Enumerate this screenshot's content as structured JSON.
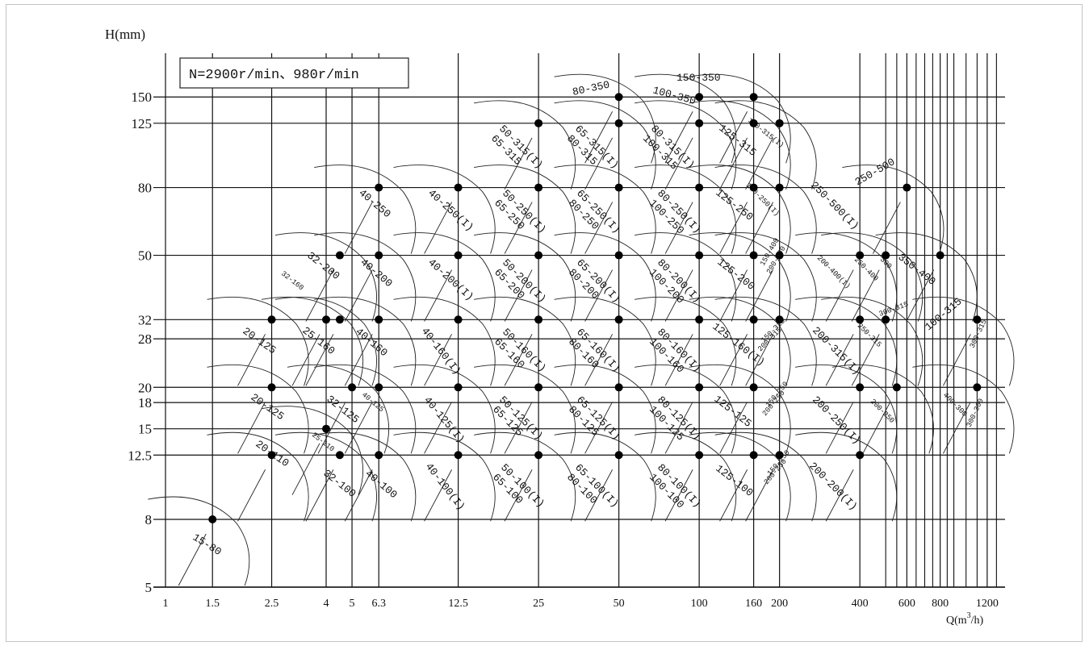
{
  "chart_data": {
    "type": "scatter",
    "title": "N=2900r/min、980r/min",
    "ylabel": "H(mm)",
    "xlabel": "Q(m3/h)",
    "xlabel_main": "Q(m",
    "xlabel_sup": "3",
    "xlabel_end": "/h)",
    "x_scale": "log",
    "y_scale": "log",
    "xlim": [
      1,
      1400
    ],
    "ylim": [
      5,
      190
    ],
    "x_ticks": [
      "1",
      "1.5",
      "2.5",
      "4",
      "5",
      "6.3",
      "12.5",
      "25",
      "50",
      "100",
      "160",
      "200",
      "400",
      "600",
      "800",
      "1200"
    ],
    "y_ticks": [
      "5",
      "8",
      "12.5",
      "15",
      "18",
      "20",
      "28",
      "32",
      "50",
      "80",
      "125",
      "150"
    ],
    "points": [
      {
        "q": 1.5,
        "h": 8,
        "label": "15-80"
      },
      {
        "q": 2.5,
        "h": 12.5,
        "label": "20-110"
      },
      {
        "q": 2.5,
        "h": 20,
        "label": "20-125"
      },
      {
        "q": 2.5,
        "h": 32,
        "label": "20-125"
      },
      {
        "q": 4,
        "h": 32,
        "label": "25-160"
      },
      {
        "q": 4,
        "h": 15,
        "label": "25-110"
      },
      {
        "q": 4.5,
        "h": 12.5,
        "label": "32-100"
      },
      {
        "q": 5,
        "h": 20,
        "label": "32-125"
      },
      {
        "q": 4.5,
        "h": 32,
        "label": "32-160"
      },
      {
        "q": 4.5,
        "h": 50,
        "label": "32-200"
      },
      {
        "q": 6.3,
        "h": 50,
        "label": "40-200"
      },
      {
        "q": 6.3,
        "h": 80,
        "label": "40-250"
      },
      {
        "q": 6.3,
        "h": 32,
        "label": "40-160"
      },
      {
        "q": 6.3,
        "h": 20,
        "label": "40-125"
      },
      {
        "q": 6.3,
        "h": 12.5,
        "label": "40-100"
      },
      {
        "q": 12.5,
        "h": 80,
        "label": "40-250(I)"
      },
      {
        "q": 12.5,
        "h": 50,
        "label": "40-200(I)"
      },
      {
        "q": 12.5,
        "h": 32,
        "label": "40-160(I)"
      },
      {
        "q": 12.5,
        "h": 20,
        "label": "40-125(I)"
      },
      {
        "q": 12.5,
        "h": 12.5,
        "label": "40-100(I)"
      },
      {
        "q": 25,
        "h": 125,
        "label": "50-315(I)"
      },
      {
        "q": 25,
        "h": 80,
        "label": "50-250(I)"
      },
      {
        "q": 25,
        "h": 50,
        "label": "50-200(I)"
      },
      {
        "q": 25,
        "h": 32,
        "label": "50-160(I)"
      },
      {
        "q": 25,
        "h": 20,
        "label": "50-125(I)"
      },
      {
        "q": 25,
        "h": 12.5,
        "label": "50-100(I)"
      },
      {
        "q": 50,
        "h": 150,
        "label": "80-350"
      },
      {
        "q": 50,
        "h": 125,
        "label": "65-315(I)"
      },
      {
        "q": 50,
        "h": 80,
        "label": "65-250(I)"
      },
      {
        "q": 50,
        "h": 50,
        "label": "65-200(I)"
      },
      {
        "q": 50,
        "h": 32,
        "label": "65-160(I)"
      },
      {
        "q": 50,
        "h": 20,
        "label": "65-125(I)"
      },
      {
        "q": 50,
        "h": 12.5,
        "label": "65-100(I)"
      },
      {
        "q": 100,
        "h": 150,
        "label": "100-350"
      },
      {
        "q": 100,
        "h": 125,
        "label": "80-315(I)"
      },
      {
        "q": 100,
        "h": 80,
        "label": "80-250(I)"
      },
      {
        "q": 100,
        "h": 50,
        "label": "80-200(I)"
      },
      {
        "q": 100,
        "h": 32,
        "label": "80-160(I)"
      },
      {
        "q": 100,
        "h": 20,
        "label": "80-125(I)"
      },
      {
        "q": 100,
        "h": 12.5,
        "label": "80-100(I)"
      },
      {
        "q": 160,
        "h": 150,
        "label": "150-350"
      },
      {
        "q": 160,
        "h": 125,
        "label": "125-315"
      },
      {
        "q": 160,
        "h": 80,
        "label": "125-250"
      },
      {
        "q": 160,
        "h": 50,
        "label": "125-200"
      },
      {
        "q": 160,
        "h": 32,
        "label": "125-160(I)"
      },
      {
        "q": 160,
        "h": 20,
        "label": "125-125"
      },
      {
        "q": 160,
        "h": 12.5,
        "label": "125-100"
      },
      {
        "q": 200,
        "h": 125,
        "label": "150-315(I)"
      },
      {
        "q": 200,
        "h": 80,
        "label": "150-250(I)"
      },
      {
        "q": 200,
        "h": 50,
        "label": "150-400"
      },
      {
        "q": 200,
        "h": 32,
        "label": "150-315"
      },
      {
        "q": 200,
        "h": 12.5,
        "label": "150-250"
      },
      {
        "q": 400,
        "h": 50,
        "label": "200-400(I)"
      },
      {
        "q": 400,
        "h": 32,
        "label": "200-315(I)"
      },
      {
        "q": 400,
        "h": 20,
        "label": "200-250(I)"
      },
      {
        "q": 400,
        "h": 12.5,
        "label": "200-200(I)"
      },
      {
        "q": 600,
        "h": 80,
        "label": "250-500"
      },
      {
        "q": 500,
        "h": 50,
        "label": "250-400"
      },
      {
        "q": 500,
        "h": 32,
        "label": "250-315"
      },
      {
        "q": 550,
        "h": 20,
        "label": "200-250"
      },
      {
        "q": 800,
        "h": 50,
        "label": "350-400"
      },
      {
        "q": 1100,
        "h": 32,
        "label": "400-315"
      },
      {
        "q": 1100,
        "h": 20,
        "label": "400-300"
      }
    ]
  },
  "labels": {
    "l15_80": "15-80",
    "l20_125": "20-125",
    "l20_125b": "20-125",
    "l20_110": "20-110",
    "l25_160": "25-160",
    "l25_110": "25-110",
    "l32_200": "32-200",
    "l32_160": "32-160",
    "l32_125": "32-125",
    "l32_100": "32-100",
    "l40_250": "40-250",
    "l40_200": "40-200",
    "l40_160": "40-160",
    "l40_125": "40-125",
    "l40_100": "40-100",
    "l40_250i": "40-250(I)",
    "l40_200i": "40-200(I)",
    "l40_160i": "40-160(I)",
    "l40_125i": "40-125(I)",
    "l40_100i": "40-100(I)",
    "l50_315i": "50-315(I)",
    "l65_315": "65-315",
    "l50_250i": "50-250(I)",
    "l65_250": "65-250",
    "l50_200i": "50-200(I)",
    "l65_200": "65-200",
    "l50_160i": "50-160(I)",
    "l65_160": "65-160",
    "l50_125i": "50-125(I)",
    "l65_125": "65-125",
    "l50_100i": "50-100(I)",
    "l65_100": "65-100",
    "l80_350": "80-350",
    "l65_315i": "65-315(I)",
    "l80_315": "80-315",
    "l65_250i": "65-250(I)",
    "l80_250": "80-250",
    "l65_200i": "65-200(I)",
    "l80_200": "80-200",
    "l65_160i": "65-160(I)",
    "l80_160": "80-160",
    "l65_125i": "65-125(I)",
    "l80_125": "80-125",
    "l65_100i": "65-100(I)",
    "l80_100": "80-100",
    "l100_350": "100-350",
    "l80_315i": "80-315(I)",
    "l100_315": "100-315",
    "l80_250i": "80-250(I)",
    "l100_250": "100-250",
    "l80_200i": "80-200(I)",
    "l100_200": "100-200",
    "l80_160i": "80-160(I)",
    "l100_160": "100-160",
    "l80_125i": "80-125(I)",
    "l100_125": "100-125",
    "l80_100i": "80-100(I)",
    "l100_100": "100-100",
    "l150_350": "150-350",
    "l125_315": "125-315",
    "l125_250": "125-250",
    "l125_200": "125-200",
    "l125_160i": "125-160(I)",
    "l125_125": "125-125",
    "l125_100": "125-100",
    "l150_315i": "150-315(I)",
    "l150_250i": "150-250(I)",
    "l150_400": "150-400",
    "l200_400": "200-400",
    "l150_315": "150-315",
    "l200_315": "200-315",
    "l150_250a": "150-250",
    "l200_250a": "200-250",
    "l150_250b": "150-250",
    "l200_250b": "200-250",
    "l250_500i": "250-500(I)",
    "l250_500": "250-500",
    "l200_400i": "200-400(I)",
    "l250_400": "250-400",
    "l300": "300",
    "l200_315i": "200-315(I)",
    "l250_315": "250-315",
    "l300_315": "300-315",
    "l200_250i": "200-250(I)",
    "l200_250": "200-250",
    "l200_200i": "200-200(I)",
    "l350_400": "350-400",
    "l100_315r": "100-315",
    "l300_315r": "300-315",
    "l400_300": "400-300",
    "l300_300": "300-300"
  }
}
